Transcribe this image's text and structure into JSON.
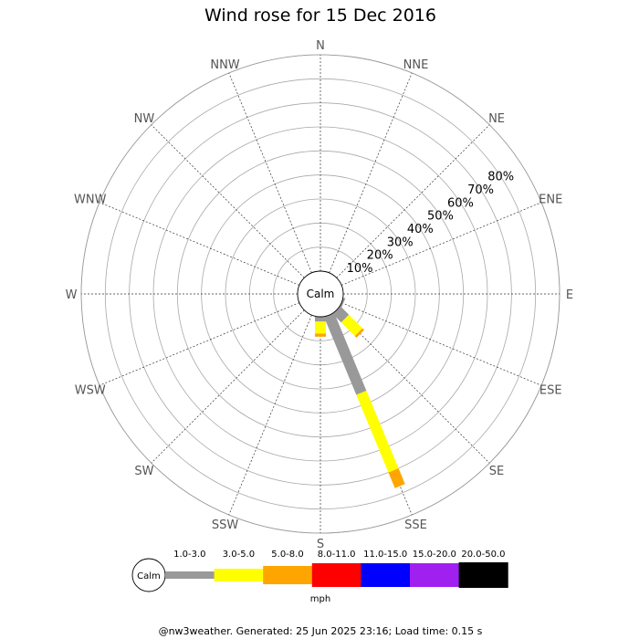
{
  "chart_data": {
    "type": "wind-rose",
    "title": "Wind rose for 15 Dec 2016",
    "directions": [
      "N",
      "NNE",
      "NE",
      "ENE",
      "E",
      "ESE",
      "SE",
      "SSE",
      "S",
      "SSW",
      "SW",
      "WSW",
      "W",
      "WNW",
      "NW",
      "NNW"
    ],
    "radial_ticks": [
      "10%",
      "20%",
      "30%",
      "40%",
      "50%",
      "60%",
      "70%",
      "80%"
    ],
    "radial_max": 80,
    "calm_label": "Calm",
    "speed_bins": [
      {
        "label": "1.0-3.0",
        "color": "#999999"
      },
      {
        "label": "3.0-5.0",
        "color": "#ffff00"
      },
      {
        "label": "5.0-8.0",
        "color": "#ffa500"
      },
      {
        "label": "8.0-11.0",
        "color": "#ff0000"
      },
      {
        "label": "11.0-15.0",
        "color": "#0000ff"
      },
      {
        "label": "15.0-20.0",
        "color": "#a020f0"
      },
      {
        "label": "20.0-50.0",
        "color": "#000000"
      }
    ],
    "units": "mph",
    "petals": [
      {
        "direction": "ESE",
        "segments": [
          {
            "bin": "1.0-3.0",
            "upper": 0.8
          }
        ]
      },
      {
        "direction": "SE",
        "segments": [
          {
            "bin": "1.0-3.0",
            "upper": 5
          },
          {
            "bin": "3.0-5.0",
            "upper": 13
          },
          {
            "bin": "5.0-8.0",
            "upper": 14
          }
        ]
      },
      {
        "direction": "SSE",
        "segments": [
          {
            "bin": "1.0-3.0",
            "upper": 35
          },
          {
            "bin": "3.0-5.0",
            "upper": 70
          },
          {
            "bin": "5.0-8.0",
            "upper": 77
          }
        ]
      },
      {
        "direction": "S",
        "segments": [
          {
            "bin": "1.0-3.0",
            "upper": 2
          },
          {
            "bin": "3.0-5.0",
            "upper": 7
          },
          {
            "bin": "5.0-8.0",
            "upper": 8.3
          }
        ]
      }
    ]
  },
  "footer": "@nw3weather. Generated: 25 Jun 2025 23:16; Load time: 0.15 s"
}
